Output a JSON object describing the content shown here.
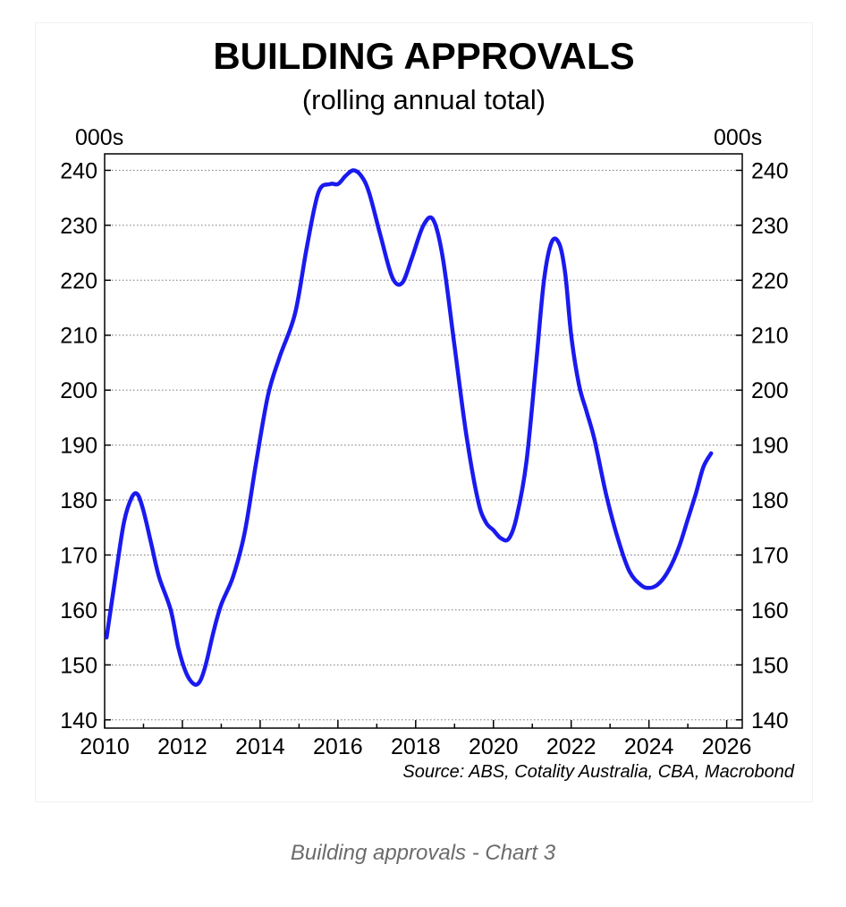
{
  "caption": "Building approvals - Chart 3",
  "chart_data": {
    "type": "line",
    "title": "BUILDING APPROVALS",
    "subtitle": "(rolling annual total)",
    "y_unit_left": "000s",
    "y_unit_right": "000s",
    "source": "Source: ABS, Cotality Australia, CBA, Macrobond",
    "xlim": [
      2010,
      2026.4
    ],
    "ylim": [
      138.5,
      243
    ],
    "x_ticks": [
      2010,
      2012,
      2014,
      2016,
      2018,
      2020,
      2022,
      2024,
      2026
    ],
    "y_ticks": [
      140,
      150,
      160,
      170,
      180,
      190,
      200,
      210,
      220,
      230,
      240
    ],
    "grid": "horizontal dotted",
    "line_color": "#1a1aef",
    "series": [
      {
        "x": [
          2010.05,
          2010.3,
          2010.5,
          2010.7,
          2010.85,
          2011.0,
          2011.2,
          2011.4,
          2011.7,
          2011.9,
          2012.1,
          2012.3,
          2012.45,
          2012.6,
          2012.8,
          2013.0,
          2013.3,
          2013.6,
          2013.9,
          2014.2,
          2014.5,
          2014.9,
          2015.2,
          2015.5,
          2015.8,
          2016.0,
          2016.2,
          2016.4,
          2016.6,
          2016.8,
          2017.1,
          2017.4,
          2017.65,
          2017.9,
          2018.2,
          2018.45,
          2018.7,
          2019.0,
          2019.3,
          2019.6,
          2019.8,
          2020.0,
          2020.2,
          2020.4,
          2020.6,
          2020.85,
          2021.1,
          2021.3,
          2021.5,
          2021.7,
          2021.85,
          2022.0,
          2022.2,
          2022.4,
          2022.6,
          2022.9,
          2023.2,
          2023.5,
          2023.8,
          2024.0,
          2024.2,
          2024.4,
          2024.6,
          2024.8,
          2025.0,
          2025.2,
          2025.4,
          2025.6
        ],
        "y": [
          155,
          167,
          176,
          180.5,
          181,
          178,
          172,
          166,
          160,
          153,
          148.5,
          146.5,
          147,
          150,
          156,
          161,
          166,
          174,
          187,
          199,
          206,
          214,
          226,
          236,
          237.5,
          237.5,
          239,
          240,
          239,
          236,
          228,
          220.5,
          219.5,
          224,
          230,
          231,
          224,
          208,
          192,
          180,
          176,
          174.5,
          173,
          173,
          177,
          187,
          205,
          220,
          227,
          226.5,
          221,
          210,
          201,
          196,
          191,
          181,
          173,
          167,
          164.5,
          164,
          164.5,
          166,
          168.5,
          172,
          176.5,
          181,
          186,
          188.5
        ]
      }
    ]
  }
}
